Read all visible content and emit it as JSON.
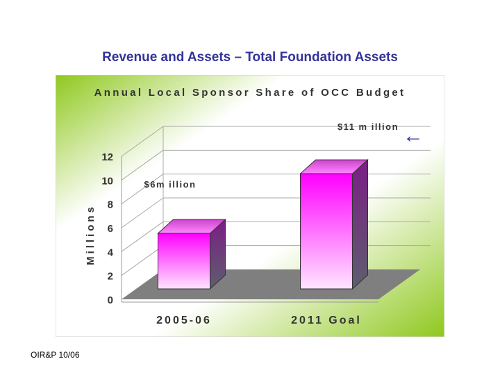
{
  "slide": {
    "title": "Revenue and Assets – Total Foundation Assets",
    "footer": "OIR&P 10/06"
  },
  "colors": {
    "title": "#33339a",
    "panel_light": "#ffffff",
    "panel_green": "#8fc81e",
    "bar_top": "#ff00ff",
    "bar_bottom": "#ffe6ff",
    "bar_side": "#6e2a78",
    "floor": "#7f7f7f",
    "arrow": "#3333aa"
  },
  "chart_data": {
    "type": "bar",
    "title": "Annual Local Sponsor Share of OCC Budget",
    "ylabel": "Millions",
    "xlabel": "",
    "ylim": [
      0,
      12
    ],
    "yticks": [
      "0",
      "2",
      "4",
      "6",
      "8",
      "10",
      "12"
    ],
    "categories": [
      "2005-06",
      "2011 Goal"
    ],
    "values": [
      6,
      11
    ],
    "data_labels": [
      "$6m illion",
      "$11 m illion"
    ],
    "annotation": "←",
    "style": "3d",
    "grid": true
  }
}
